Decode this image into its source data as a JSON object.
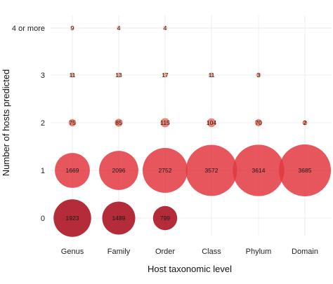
{
  "chart_data": {
    "type": "scatter",
    "xlabel": "Host taxonomic level",
    "ylabel": "Number of hosts predicted",
    "categories": [
      "Genus",
      "Family",
      "Order",
      "Class",
      "Phylum",
      "Domain"
    ],
    "y_categories": [
      "0",
      "1",
      "2",
      "3",
      "4 or more"
    ],
    "grid": true,
    "colors": {
      "0": "#b0202e",
      "1": "#e2383f",
      "2": "#ec7d6d",
      "3": "#f0a48e",
      "4 or more": "#f5cdbd"
    },
    "points": [
      {
        "x": "Genus",
        "y": "0",
        "value": 1923
      },
      {
        "x": "Family",
        "y": "0",
        "value": 1489
      },
      {
        "x": "Order",
        "y": "0",
        "value": 799
      },
      {
        "x": "Genus",
        "y": "1",
        "value": 1669
      },
      {
        "x": "Family",
        "y": "1",
        "value": 2096
      },
      {
        "x": "Order",
        "y": "1",
        "value": 2752
      },
      {
        "x": "Class",
        "y": "1",
        "value": 3572
      },
      {
        "x": "Phylum",
        "y": "1",
        "value": 3614
      },
      {
        "x": "Domain",
        "y": "1",
        "value": 3685
      },
      {
        "x": "Genus",
        "y": "2",
        "value": 75
      },
      {
        "x": "Family",
        "y": "2",
        "value": 85
      },
      {
        "x": "Order",
        "y": "2",
        "value": 115
      },
      {
        "x": "Class",
        "y": "2",
        "value": 104
      },
      {
        "x": "Phylum",
        "y": "2",
        "value": 70
      },
      {
        "x": "Domain",
        "y": "2",
        "value": 2
      },
      {
        "x": "Genus",
        "y": "3",
        "value": 11
      },
      {
        "x": "Family",
        "y": "3",
        "value": 13
      },
      {
        "x": "Order",
        "y": "3",
        "value": 17
      },
      {
        "x": "Class",
        "y": "3",
        "value": 11
      },
      {
        "x": "Phylum",
        "y": "3",
        "value": 3
      },
      {
        "x": "Genus",
        "y": "4 or more",
        "value": 9
      },
      {
        "x": "Family",
        "y": "4 or more",
        "value": 4
      },
      {
        "x": "Order",
        "y": "4 or more",
        "value": 4
      }
    ]
  }
}
